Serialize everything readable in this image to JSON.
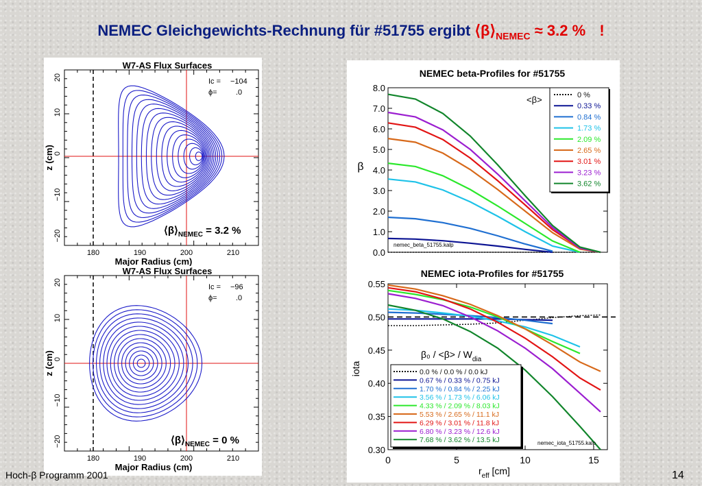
{
  "slide": {
    "title_main": "NEMEC Gleichgewichts-Rechnung für #51755 ergibt ",
    "title_bracket": "⟨β⟩",
    "title_sub": "NEMEC",
    "title_value": " ≈ 3.2 %",
    "title_bang": "!",
    "footer_left": "Hoch-β Programm 2001",
    "page_number": "14"
  },
  "flux_top": {
    "title": "W7-AS Flux Surfaces",
    "ic_label": "Ic =",
    "ic_value": "−104",
    "phi_label": "ϕ=",
    "phi_value": ".0",
    "beta_label": "⟨β⟩",
    "beta_sub": "NEMEC",
    "beta_value": " = 3.2 %",
    "xlabel": "Major Radius (cm)",
    "ylabel": "z (cm)",
    "xticks": [
      "180",
      "190",
      "200",
      "210"
    ],
    "yticks": [
      "20",
      "10",
      "0",
      "−10",
      "−20"
    ]
  },
  "flux_bottom": {
    "title": "W7-AS Flux Surfaces",
    "ic_label": "Ic =",
    "ic_value": "−96",
    "phi_label": "ϕ=",
    "phi_value": ".0",
    "beta_label": "⟨β⟩",
    "beta_sub": "NEMEC",
    "beta_value": " = 0 %",
    "xlabel": "Major Radius (cm)",
    "ylabel": "z (cm)",
    "xticks": [
      "180",
      "190",
      "200",
      "210"
    ],
    "yticks": [
      "20",
      "10",
      "0",
      "−10",
      "−20"
    ]
  },
  "beta_legend_title": "<β>",
  "iota_legend_title": "β₀ / <β> / W",
  "iota_legend_title_sub": "dia",
  "colors": [
    "#111111",
    "#0c1493",
    "#1f6fd1",
    "#1ec2e8",
    "#2be82b",
    "#d7691a",
    "#e21414",
    "#9b1ed0",
    "#11852b"
  ],
  "chart_data": [
    {
      "type": "line",
      "title": "NEMEC beta-Profiles for #51755",
      "xlabel": "",
      "ylabel": "β",
      "xlim": [
        0,
        16
      ],
      "ylim": [
        0,
        8
      ],
      "yticks": [
        "0.0",
        "1.0",
        "2.0",
        "3.0",
        "4.0",
        "5.0",
        "6.0",
        "7.0",
        "8.0"
      ],
      "annotation": "nemec_beta_51755.kalp",
      "legend_position": "top-right",
      "x": [
        0,
        2,
        4,
        6,
        8,
        10,
        12,
        14,
        15.5
      ],
      "series": [
        {
          "name": "0 %",
          "values": [
            0,
            0,
            0,
            0,
            0,
            0,
            0,
            0,
            0
          ]
        },
        {
          "name": "0.33 %",
          "values": [
            0.67,
            0.64,
            0.56,
            0.44,
            0.3,
            0.14,
            0.0,
            null,
            null
          ]
        },
        {
          "name": "0.84 %",
          "values": [
            1.7,
            1.63,
            1.44,
            1.16,
            0.8,
            0.4,
            0.05,
            null,
            null
          ]
        },
        {
          "name": "1.73 %",
          "values": [
            3.56,
            3.42,
            3.03,
            2.45,
            1.75,
            1.0,
            0.3,
            0.0,
            null
          ]
        },
        {
          "name": "2.09 %",
          "values": [
            4.33,
            4.17,
            3.72,
            3.05,
            2.25,
            1.4,
            0.55,
            0.0,
            null
          ]
        },
        {
          "name": "2.65 %",
          "values": [
            5.53,
            5.35,
            4.82,
            4.02,
            3.05,
            2.0,
            0.95,
            0.15,
            0.0
          ]
        },
        {
          "name": "3.01 %",
          "values": [
            6.29,
            6.08,
            5.48,
            4.58,
            3.48,
            2.3,
            1.1,
            0.2,
            0.0
          ]
        },
        {
          "name": "3.23 %",
          "values": [
            6.8,
            6.58,
            5.95,
            5.0,
            3.8,
            2.5,
            1.2,
            0.2,
            0.0
          ]
        },
        {
          "name": "3.62 %",
          "values": [
            7.68,
            7.45,
            6.75,
            5.65,
            4.25,
            2.75,
            1.3,
            0.25,
            0.0
          ]
        }
      ]
    },
    {
      "type": "line",
      "title": "NEMEC iota-Profiles for #51755",
      "xlabel": "r",
      "xlabel_sub": "eff",
      "xlabel_unit": " [cm]",
      "ylabel": "iota",
      "xlim": [
        0,
        16
      ],
      "ylim": [
        0.3,
        0.55
      ],
      "xticks": [
        "0",
        "5",
        "10",
        "15"
      ],
      "yticks": [
        "0.30",
        "0.35",
        "0.40",
        "0.45",
        "0.50",
        "0.55"
      ],
      "reference_line": 0.5,
      "annotation": "nemec_iota_51755.kalp",
      "legend_position": "bottom-left",
      "x": [
        0,
        2,
        4,
        6,
        8,
        10,
        12,
        14,
        15.5
      ],
      "series": [
        {
          "name": "0.0 % / 0.0 % / 0.0 kJ",
          "values": [
            0.487,
            0.487,
            0.488,
            0.489,
            0.491,
            0.495,
            0.499,
            0.502,
            0.503
          ]
        },
        {
          "name": "0.67 % / 0.33 % / 0.75 kJ",
          "values": [
            0.497,
            0.497,
            0.497,
            0.497,
            0.497,
            0.496,
            0.495,
            null,
            null
          ]
        },
        {
          "name": "1.70 % / 0.84 % / 2.25 kJ",
          "values": [
            0.507,
            0.506,
            0.504,
            0.502,
            0.499,
            0.495,
            0.49,
            null,
            null
          ]
        },
        {
          "name": "3.56 % / 1.73 % / 6.06 kJ",
          "values": [
            0.512,
            0.51,
            0.506,
            0.501,
            0.494,
            0.485,
            0.472,
            0.455,
            null
          ]
        },
        {
          "name": "4.33 % / 2.09 % / 8.03 kJ",
          "values": [
            0.54,
            0.534,
            0.526,
            0.515,
            0.5,
            0.482,
            0.463,
            0.445,
            null
          ]
        },
        {
          "name": "5.53 % / 2.65 % / 11.1 kJ",
          "values": [
            0.548,
            0.542,
            0.532,
            0.519,
            0.502,
            0.482,
            0.458,
            0.432,
            0.418
          ]
        },
        {
          "name": "6.29 % / 3.01 % / 11.8 kJ",
          "values": [
            0.544,
            0.538,
            0.527,
            0.512,
            0.492,
            0.468,
            0.44,
            0.408,
            0.39
          ]
        },
        {
          "name": "6.80 % / 3.23 % / 12.6 kJ",
          "values": [
            0.535,
            0.528,
            0.517,
            0.5,
            0.479,
            0.453,
            0.422,
            0.385,
            0.357
          ]
        },
        {
          "name": "7.68 % / 3.62 % / 13.5 kJ",
          "values": [
            0.518,
            0.51,
            0.497,
            0.478,
            0.453,
            0.42,
            0.38,
            0.335,
            0.3
          ]
        }
      ]
    }
  ]
}
